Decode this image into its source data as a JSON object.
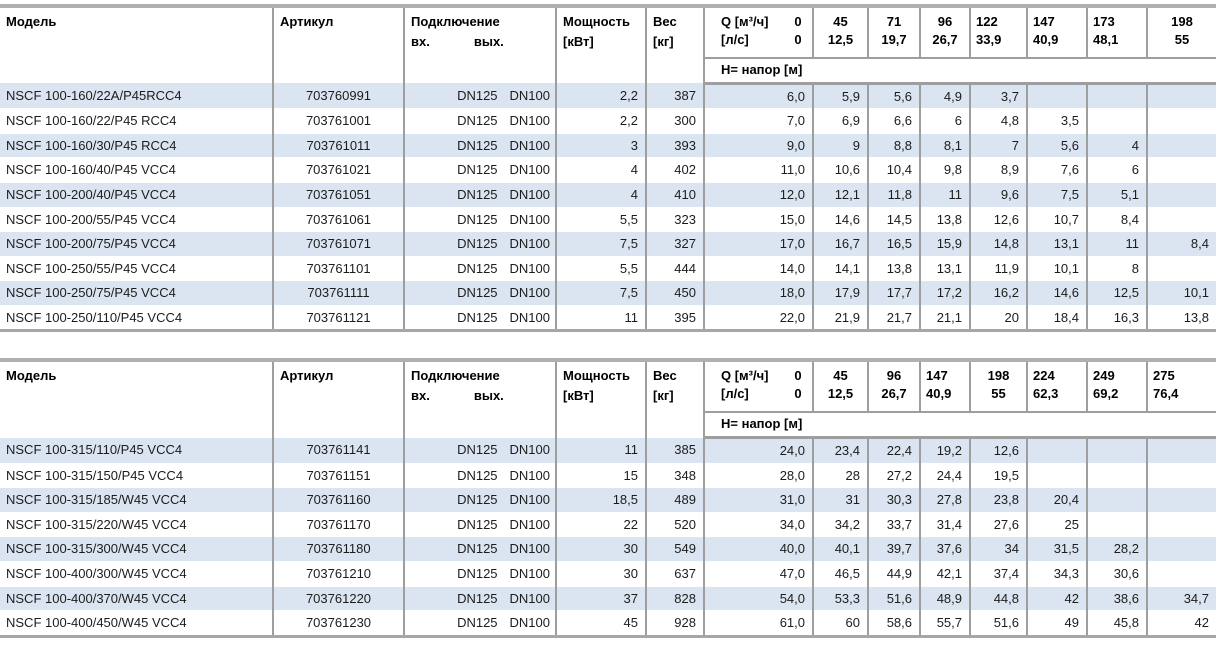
{
  "colors": {
    "row_stripe": "#dbe5f1",
    "grid_border": "#9e9e9e",
    "body_text": "#1c1c1c",
    "header_text": "#000000"
  },
  "tables": [
    {
      "headers": {
        "model": "Модель",
        "article": "Артикул",
        "connection": "Подключение",
        "conn_in": "вх.",
        "conn_out": "вых.",
        "power_l1": "Мощность",
        "power_l2": "[кВт]",
        "weight_l1": "Вес",
        "weight_l2": "[кг]",
        "q_unit_m3h": "Q [м³/ч]",
        "q_flow0_m3h": "0",
        "q_unit_ls": "[л/с]",
        "q_flow0_ls": "0",
        "h_label": "H= напор [м]",
        "flows": [
          {
            "m3h": "45",
            "ls": "12,5",
            "align": "center"
          },
          {
            "m3h": "71",
            "ls": "19,7",
            "align": "center"
          },
          {
            "m3h": "96",
            "ls": "26,7",
            "align": "center"
          },
          {
            "m3h": "122",
            "ls": "33,9",
            "align": "left"
          },
          {
            "m3h": "147",
            "ls": "40,9",
            "align": "left"
          },
          {
            "m3h": "173",
            "ls": "48,1",
            "align": "left"
          },
          {
            "m3h": "198",
            "ls": "55",
            "align": "center"
          }
        ]
      },
      "rows": [
        {
          "model": "NSCF 100-160/22A/P45RCC4",
          "article": "703760991",
          "dn_in": "DN125",
          "dn_out": "DN100",
          "power": "2,2",
          "weight": "387",
          "h": [
            "6,0",
            "5,9",
            "5,6",
            "4,9",
            "3,7",
            "",
            "",
            ""
          ]
        },
        {
          "model": "NSCF 100-160/22/P45 RCC4",
          "article": "703761001",
          "dn_in": "DN125",
          "dn_out": "DN100",
          "power": "2,2",
          "weight": "300",
          "h": [
            "7,0",
            "6,9",
            "6,6",
            "6",
            "4,8",
            "3,5",
            "",
            ""
          ]
        },
        {
          "model": "NSCF 100-160/30/P45 RCC4",
          "article": "703761011",
          "dn_in": "DN125",
          "dn_out": "DN100",
          "power": "3",
          "weight": "393",
          "h": [
            "9,0",
            "9",
            "8,8",
            "8,1",
            "7",
            "5,6",
            "4",
            ""
          ]
        },
        {
          "model": "NSCF 100-160/40/P45 VCC4",
          "article": "703761021",
          "dn_in": "DN125",
          "dn_out": "DN100",
          "power": "4",
          "weight": "402",
          "h": [
            "11,0",
            "10,6",
            "10,4",
            "9,8",
            "8,9",
            "7,6",
            "6",
            ""
          ]
        },
        {
          "model": "NSCF 100-200/40/P45 VCC4",
          "article": "703761051",
          "dn_in": "DN125",
          "dn_out": "DN100",
          "power": "4",
          "weight": "410",
          "h": [
            "12,0",
            "12,1",
            "11,8",
            "11",
            "9,6",
            "7,5",
            "5,1",
            ""
          ]
        },
        {
          "model": "NSCF 100-200/55/P45 VCC4",
          "article": "703761061",
          "dn_in": "DN125",
          "dn_out": "DN100",
          "power": "5,5",
          "weight": "323",
          "h": [
            "15,0",
            "14,6",
            "14,5",
            "13,8",
            "12,6",
            "10,7",
            "8,4",
            ""
          ]
        },
        {
          "model": "NSCF 100-200/75/P45 VCC4",
          "article": "703761071",
          "dn_in": "DN125",
          "dn_out": "DN100",
          "power": "7,5",
          "weight": "327",
          "h": [
            "17,0",
            "16,7",
            "16,5",
            "15,9",
            "14,8",
            "13,1",
            "11",
            "8,4"
          ]
        },
        {
          "model": "NSCF 100-250/55/P45 VCC4",
          "article": "703761101",
          "dn_in": "DN125",
          "dn_out": "DN100",
          "power": "5,5",
          "weight": "444",
          "h": [
            "14,0",
            "14,1",
            "13,8",
            "13,1",
            "11,9",
            "10,1",
            "8",
            ""
          ]
        },
        {
          "model": "NSCF 100-250/75/P45 VCC4",
          "article": "703761111",
          "dn_in": "DN125",
          "dn_out": "DN100",
          "power": "7,5",
          "weight": "450",
          "h": [
            "18,0",
            "17,9",
            "17,7",
            "17,2",
            "16,2",
            "14,6",
            "12,5",
            "10,1"
          ]
        },
        {
          "model": "NSCF 100-250/110/P45 VCC4",
          "article": "703761121",
          "dn_in": "DN125",
          "dn_out": "DN100",
          "power": "11",
          "weight": "395",
          "h": [
            "22,0",
            "21,9",
            "21,7",
            "21,1",
            "20",
            "18,4",
            "16,3",
            "13,8"
          ]
        }
      ]
    },
    {
      "headers": {
        "model": "Модель",
        "article": "Артикул",
        "connection": "Подключение",
        "conn_in": "вх.",
        "conn_out": "вых.",
        "power_l1": "Мощность",
        "power_l2": "[кВт]",
        "weight_l1": "Вес",
        "weight_l2": "[кг]",
        "q_unit_m3h": "Q [м³/ч]",
        "q_flow0_m3h": "0",
        "q_unit_ls": "[л/с]",
        "q_flow0_ls": "0",
        "h_label": "H= напор [м]",
        "flows": [
          {
            "m3h": "45",
            "ls": "12,5",
            "align": "center"
          },
          {
            "m3h": "96",
            "ls": "26,7",
            "align": "center"
          },
          {
            "m3h": "147",
            "ls": "40,9",
            "align": "left"
          },
          {
            "m3h": "198",
            "ls": "55",
            "align": "center"
          },
          {
            "m3h": "224",
            "ls": "62,3",
            "align": "left"
          },
          {
            "m3h": "249",
            "ls": "69,2",
            "align": "left"
          },
          {
            "m3h": "275",
            "ls": "76,4",
            "align": "left"
          }
        ]
      },
      "rows": [
        {
          "model": "NSCF 100-315/110/P45 VCC4",
          "article": "703761141",
          "dn_in": "DN125",
          "dn_out": "DN100",
          "power": "11",
          "weight": "385",
          "h": [
            "24,0",
            "23,4",
            "22,4",
            "19,2",
            "12,6",
            "",
            "",
            ""
          ]
        },
        {
          "model": "NSCF 100-315/150/P45 VCC4",
          "article": "703761151",
          "dn_in": "DN125",
          "dn_out": "DN100",
          "power": "15",
          "weight": "348",
          "h": [
            "28,0",
            "28",
            "27,2",
            "24,4",
            "19,5",
            "",
            "",
            ""
          ]
        },
        {
          "model": "NSCF 100-315/185/W45 VCC4",
          "article": "703761160",
          "dn_in": "DN125",
          "dn_out": "DN100",
          "power": "18,5",
          "weight": "489",
          "h": [
            "31,0",
            "31",
            "30,3",
            "27,8",
            "23,8",
            "20,4",
            "",
            ""
          ]
        },
        {
          "model": "NSCF 100-315/220/W45 VCC4",
          "article": "703761170",
          "dn_in": "DN125",
          "dn_out": "DN100",
          "power": "22",
          "weight": "520",
          "h": [
            "34,0",
            "34,2",
            "33,7",
            "31,4",
            "27,6",
            "25",
            "",
            ""
          ]
        },
        {
          "model": "NSCF 100-315/300/W45 VCC4",
          "article": "703761180",
          "dn_in": "DN125",
          "dn_out": "DN100",
          "power": "30",
          "weight": "549",
          "h": [
            "40,0",
            "40,1",
            "39,7",
            "37,6",
            "34",
            "31,5",
            "28,2",
            ""
          ]
        },
        {
          "model": "NSCF 100-400/300/W45 VCC4",
          "article": "703761210",
          "dn_in": "DN125",
          "dn_out": "DN100",
          "power": "30",
          "weight": "637",
          "h": [
            "47,0",
            "46,5",
            "44,9",
            "42,1",
            "37,4",
            "34,3",
            "30,6",
            ""
          ]
        },
        {
          "model": "NSCF 100-400/370/W45 VCC4",
          "article": "703761220",
          "dn_in": "DN125",
          "dn_out": "DN100",
          "power": "37",
          "weight": "828",
          "h": [
            "54,0",
            "53,3",
            "51,6",
            "48,9",
            "44,8",
            "42",
            "38,6",
            "34,7"
          ]
        },
        {
          "model": "NSCF 100-400/450/W45 VCC4",
          "article": "703761230",
          "dn_in": "DN125",
          "dn_out": "DN100",
          "power": "45",
          "weight": "928",
          "h": [
            "61,0",
            "60",
            "58,6",
            "55,7",
            "51,6",
            "49",
            "45,8",
            "42"
          ]
        }
      ]
    }
  ]
}
